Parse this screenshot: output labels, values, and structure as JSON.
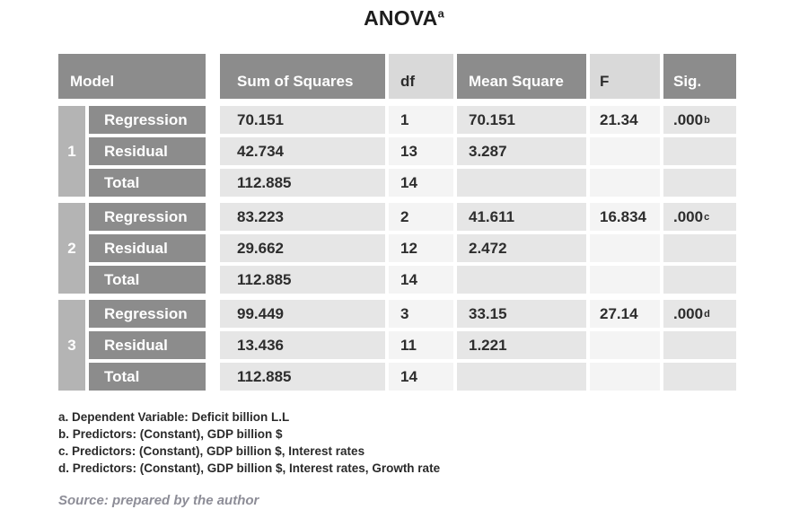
{
  "title": {
    "text": "ANOVA",
    "superscript": "a"
  },
  "table": {
    "columns": {
      "model": "Model",
      "sum_of_squares": "Sum of Squares",
      "df": "df",
      "mean_square": "Mean Square",
      "f": "F",
      "sig": "Sig."
    },
    "groups": [
      {
        "model": "1",
        "rows": [
          {
            "label": "Regression",
            "sum_of_squares": "70.151",
            "df": "1",
            "mean_square": "70.151",
            "f": "21.34",
            "sig": ".000",
            "sig_sup": "b"
          },
          {
            "label": "Residual",
            "sum_of_squares": "42.734",
            "df": "13",
            "mean_square": "3.287",
            "f": "",
            "sig": "",
            "sig_sup": ""
          },
          {
            "label": "Total",
            "sum_of_squares": "112.885",
            "df": "14",
            "mean_square": "",
            "f": "",
            "sig": "",
            "sig_sup": ""
          }
        ]
      },
      {
        "model": "2",
        "rows": [
          {
            "label": "Regression",
            "sum_of_squares": "83.223",
            "df": "2",
            "mean_square": "41.611",
            "f": "16.834",
            "sig": ".000",
            "sig_sup": "c"
          },
          {
            "label": "Residual",
            "sum_of_squares": "29.662",
            "df": "12",
            "mean_square": "2.472",
            "f": "",
            "sig": "",
            "sig_sup": ""
          },
          {
            "label": "Total",
            "sum_of_squares": "112.885",
            "df": "14",
            "mean_square": "",
            "f": "",
            "sig": "",
            "sig_sup": ""
          }
        ]
      },
      {
        "model": "3",
        "rows": [
          {
            "label": "Regression",
            "sum_of_squares": "99.449",
            "df": "3",
            "mean_square": "33.15",
            "f": "27.14",
            "sig": ".000",
            "sig_sup": "d"
          },
          {
            "label": "Residual",
            "sum_of_squares": "13.436",
            "df": "11",
            "mean_square": "1.221",
            "f": "",
            "sig": "",
            "sig_sup": ""
          },
          {
            "label": "Total",
            "sum_of_squares": "112.885",
            "df": "14",
            "mean_square": "",
            "f": "",
            "sig": "",
            "sig_sup": ""
          }
        ]
      }
    ]
  },
  "footnotes": [
    "a. Dependent Variable: Deficit billion L.L",
    "b. Predictors: (Constant), GDP billion $",
    "c. Predictors: (Constant), GDP billion $, Interest rates",
    "d. Predictors: (Constant), GDP billion $, Interest rates, Growth rate"
  ],
  "source": "Source: prepared by the author",
  "colors": {
    "header_dark": "#8c8c8c",
    "header_light": "#d9d9d9",
    "model_strip": "#b4b4b4",
    "label_dark": "#8c8c8c",
    "cell_gray": "#e6e6e6",
    "cell_light": "#f4f4f4",
    "text_dark": "#2d2d2d",
    "title_text": "#1e1e1e",
    "footnote_text": "#2a2a2a",
    "source_text": "#8d8d97"
  }
}
